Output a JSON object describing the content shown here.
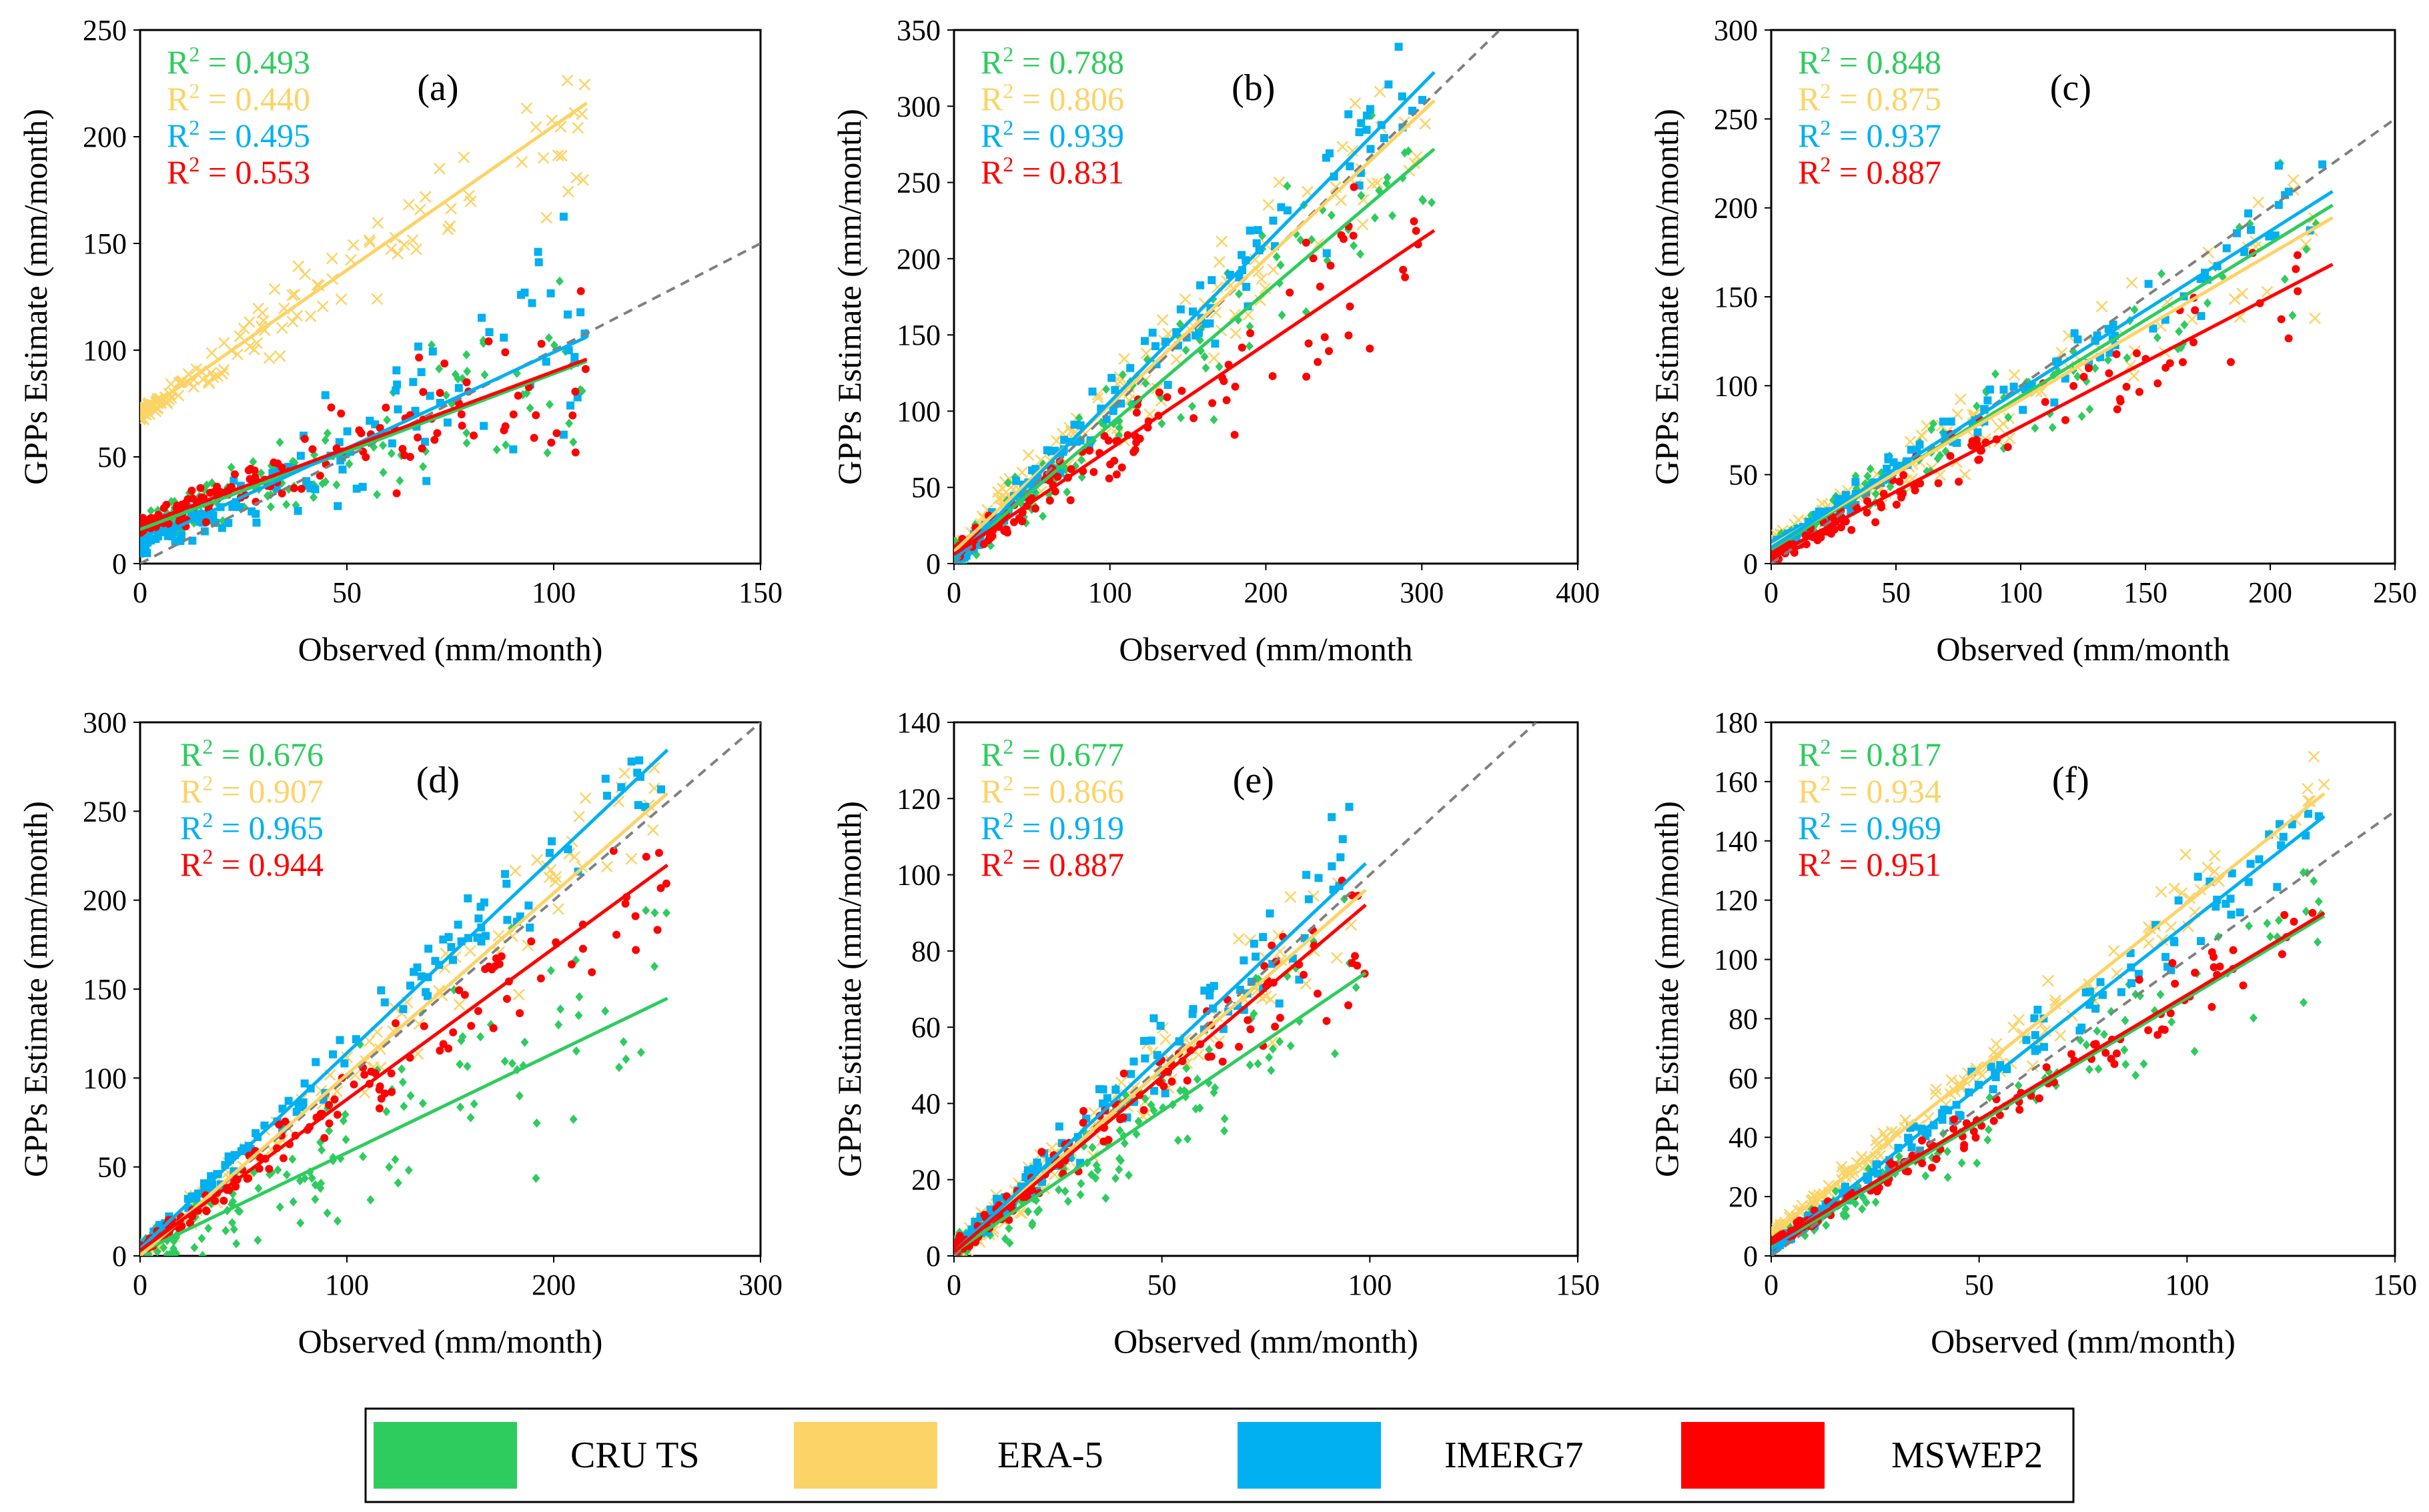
{
  "legend": [
    {
      "name": "CRU TS",
      "color": "#2ECC5E"
    },
    {
      "name": "ERA-5",
      "color": "#FCD366"
    },
    {
      "name": "IMERG7",
      "color": "#00B0F0"
    },
    {
      "name": "MSWEP2",
      "color": "#FF0000"
    }
  ],
  "chart_data": [
    {
      "type": "scatter",
      "label": "(a)",
      "xlabel": "Observed  (mm/month)",
      "ylabel": "GPPs Estimate  (mm/month)",
      "xlim": [
        0,
        150
      ],
      "ylim": [
        0,
        250
      ],
      "xticks": [
        0,
        50,
        100,
        150
      ],
      "yticks": [
        0,
        50,
        100,
        150,
        200,
        250
      ],
      "xmax_data": 108,
      "series": [
        {
          "name": "CRU TS",
          "r2": "0.493",
          "intercept": 16,
          "slope": 0.73,
          "spread": 0.45
        },
        {
          "name": "ERA-5",
          "r2": "0.440",
          "intercept": 70,
          "slope": 1.35,
          "spread": 0.35
        },
        {
          "name": "IMERG7",
          "r2": "0.495",
          "intercept": 9,
          "slope": 0.9,
          "spread": 0.45
        },
        {
          "name": "MSWEP2",
          "r2": "0.553",
          "intercept": 18,
          "slope": 0.72,
          "spread": 0.35
        }
      ]
    },
    {
      "type": "scatter",
      "label": "(b)",
      "xlabel": "Observed  (mm/month",
      "ylabel": "GPPs Estimate  (mm/month)",
      "xlim": [
        0,
        400
      ],
      "ylim": [
        0,
        350
      ],
      "xticks": [
        0,
        100,
        200,
        300,
        400
      ],
      "yticks": [
        0,
        50,
        100,
        150,
        200,
        250,
        300,
        350
      ],
      "xmax_data": 308,
      "series": [
        {
          "name": "CRU TS",
          "r2": "0.788",
          "intercept": 4,
          "slope": 0.87,
          "spread": 0.25
        },
        {
          "name": "ERA-5",
          "r2": "0.806",
          "intercept": 8,
          "slope": 0.96,
          "spread": 0.22
        },
        {
          "name": "IMERG7",
          "r2": "0.939",
          "intercept": 2,
          "slope": 1.04,
          "spread": 0.15
        },
        {
          "name": "MSWEP2",
          "r2": "0.831",
          "intercept": 6,
          "slope": 0.69,
          "spread": 0.2
        }
      ]
    },
    {
      "type": "scatter",
      "label": "(c)",
      "xlabel": "Observed  (mm/month",
      "ylabel": "GPPs Estimate  (mm/month)",
      "xlim": [
        0,
        250
      ],
      "ylim": [
        0,
        300
      ],
      "xticks": [
        0,
        50,
        100,
        150,
        200,
        250
      ],
      "yticks": [
        0,
        50,
        100,
        150,
        200,
        250,
        300
      ],
      "xmax_data": 225,
      "series": [
        {
          "name": "CRU TS",
          "r2": "0.848",
          "intercept": 8,
          "slope": 0.86,
          "spread": 0.22
        },
        {
          "name": "ERA-5",
          "r2": "0.875",
          "intercept": 10,
          "slope": 0.82,
          "spread": 0.2
        },
        {
          "name": "IMERG7",
          "r2": "0.937",
          "intercept": 9,
          "slope": 0.89,
          "spread": 0.14
        },
        {
          "name": "MSWEP2",
          "r2": "0.887",
          "intercept": 4,
          "slope": 0.73,
          "spread": 0.18
        }
      ]
    },
    {
      "type": "scatter",
      "label": "(d)",
      "xlabel": "Observed  (mm/month)",
      "ylabel": "GPPs Estimate  (mm/month)",
      "xlim": [
        0,
        300
      ],
      "ylim": [
        0,
        300
      ],
      "xticks": [
        0,
        100,
        200,
        300
      ],
      "yticks": [
        0,
        50,
        100,
        150,
        200,
        250,
        300
      ],
      "xmax_data": 255,
      "series": [
        {
          "name": "CRU TS",
          "r2": "0.676",
          "intercept": 2,
          "slope": 0.56,
          "spread": 0.35
        },
        {
          "name": "ERA-5",
          "r2": "0.907",
          "intercept": 0,
          "slope": 1.02,
          "spread": 0.18
        },
        {
          "name": "IMERG7",
          "r2": "0.965",
          "intercept": 4,
          "slope": 1.1,
          "spread": 0.12
        },
        {
          "name": "MSWEP2",
          "r2": "0.944",
          "intercept": 3,
          "slope": 0.85,
          "spread": 0.14
        }
      ]
    },
    {
      "type": "scatter",
      "label": "(e)",
      "xlabel": "Observed  (mm/month)",
      "ylabel": "GPPs Estimate  (mm/month)",
      "xlim": [
        0,
        150
      ],
      "ylim": [
        0,
        140
      ],
      "xticks": [
        0,
        50,
        100,
        150
      ],
      "yticks": [
        0,
        20,
        40,
        60,
        80,
        100,
        120,
        140
      ],
      "xmax_data": 99,
      "series": [
        {
          "name": "CRU TS",
          "r2": "0.677",
          "intercept": 1,
          "slope": 0.74,
          "spread": 0.3
        },
        {
          "name": "ERA-5",
          "r2": "0.866",
          "intercept": 1,
          "slope": 0.96,
          "spread": 0.22
        },
        {
          "name": "IMERG7",
          "r2": "0.919",
          "intercept": 1,
          "slope": 1.03,
          "spread": 0.18
        },
        {
          "name": "MSWEP2",
          "r2": "0.887",
          "intercept": 1,
          "slope": 0.92,
          "spread": 0.2
        }
      ]
    },
    {
      "type": "scatter",
      "label": "(f)",
      "xlabel": "Observed  (mm/month)",
      "ylabel": "GPPs Estimate  (mm/month)",
      "xlim": [
        0,
        150
      ],
      "ylim": [
        0,
        180
      ],
      "xticks": [
        0,
        50,
        100,
        150
      ],
      "yticks": [
        0,
        20,
        40,
        60,
        80,
        100,
        120,
        140,
        160,
        180
      ],
      "xmax_data": 133,
      "series": [
        {
          "name": "CRU TS",
          "r2": "0.817",
          "intercept": 3,
          "slope": 0.84,
          "spread": 0.22
        },
        {
          "name": "ERA-5",
          "r2": "0.934",
          "intercept": 7,
          "slope": 1.12,
          "spread": 0.14
        },
        {
          "name": "IMERG7",
          "r2": "0.969",
          "intercept": 2,
          "slope": 1.1,
          "spread": 0.12
        },
        {
          "name": "MSWEP2",
          "r2": "0.951",
          "intercept": 4,
          "slope": 0.84,
          "spread": 0.13
        }
      ]
    }
  ]
}
